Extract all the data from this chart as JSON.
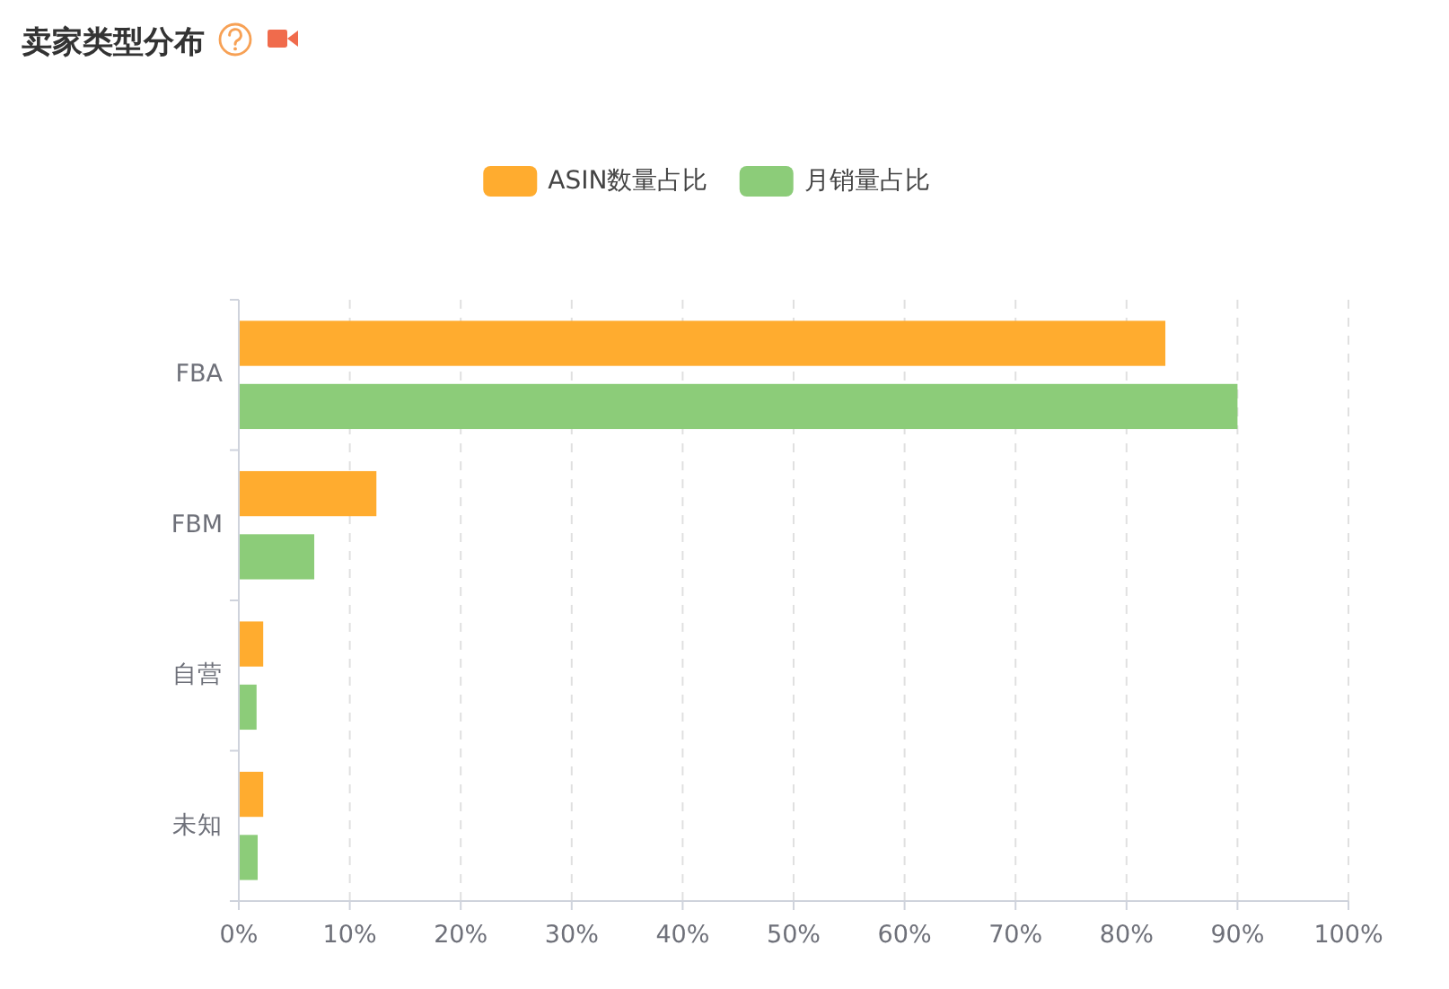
{
  "chart_data": {
    "type": "bar",
    "title": "卖家类型分布",
    "orientation": "horizontal",
    "categories": [
      "FBA",
      "FBM",
      "自营",
      "未知"
    ],
    "series": [
      {
        "name": "ASIN数量占比",
        "color": "#ffac2f",
        "values": [
          83.5,
          12.4,
          2.2,
          2.2
        ]
      },
      {
        "name": "月销量占比",
        "color": "#8ccc79",
        "values": [
          90.0,
          6.8,
          1.6,
          1.7
        ]
      }
    ],
    "xlim": [
      0,
      100
    ],
    "xticks": [
      {
        "value": 0,
        "label": "0%"
      },
      {
        "value": 10,
        "label": "10%"
      },
      {
        "value": 20,
        "label": "20%"
      },
      {
        "value": 30,
        "label": "30%"
      },
      {
        "value": 40,
        "label": "40%"
      },
      {
        "value": 50,
        "label": "50%"
      },
      {
        "value": 60,
        "label": "60%"
      },
      {
        "value": 70,
        "label": "70%"
      },
      {
        "value": 80,
        "label": "80%"
      },
      {
        "value": 90,
        "label": "90%"
      },
      {
        "value": 100,
        "label": "100%"
      }
    ],
    "grid": "x",
    "legend": "top"
  }
}
